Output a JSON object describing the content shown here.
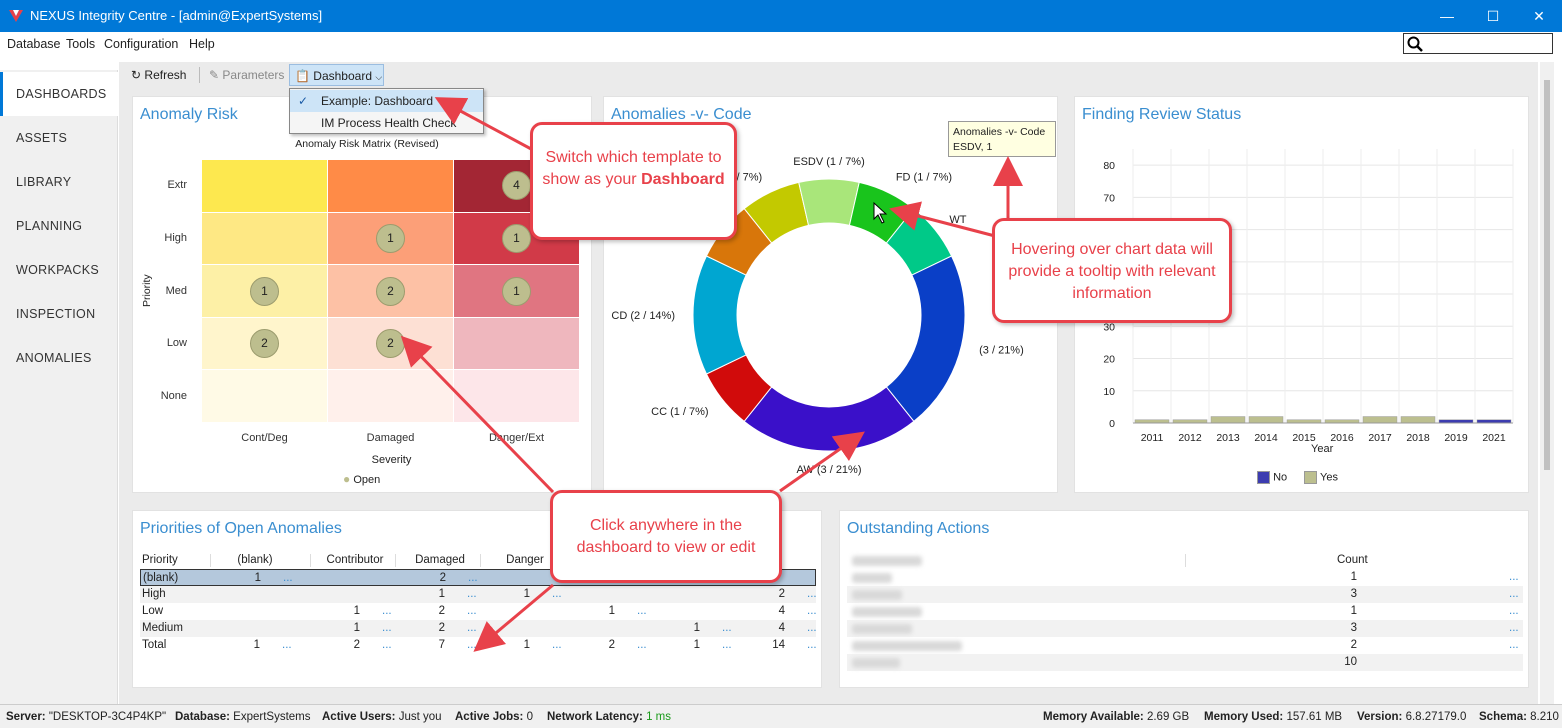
{
  "window": {
    "title": "NEXUS Integrity Centre - [admin@ExpertSystems]",
    "minimize": "—",
    "maximize": "☐",
    "close": "✕"
  },
  "menu": [
    "Database",
    "Tools",
    "Configuration",
    "Help"
  ],
  "search": {
    "placeholder": ""
  },
  "sidebar": {
    "items": [
      {
        "label": "DASHBOARDS",
        "active": true
      },
      {
        "label": "ASSETS"
      },
      {
        "label": "LIBRARY"
      },
      {
        "label": "PLANNING"
      },
      {
        "label": "WORKPACKS"
      },
      {
        "label": "INSPECTION"
      },
      {
        "label": "ANOMALIES"
      }
    ]
  },
  "toolbar": {
    "refresh": "Refresh",
    "parameters": "Parameters",
    "dashboard": "Dashboard"
  },
  "dropdown": {
    "items": [
      {
        "label": "Example: Dashboard",
        "checked": true
      },
      {
        "label": "IM Process Health Check"
      }
    ]
  },
  "risk": {
    "title": "Anomaly Risk",
    "subtitle": "Anomaly Risk Matrix (Revised)",
    "ylabel": "Priority",
    "rows": [
      "Extr",
      "High",
      "Med",
      "Low",
      "None"
    ],
    "cols": [
      "Cont/Deg",
      "Damaged",
      "Danger/Ext"
    ],
    "xlabel": "Severity",
    "legend": "Open",
    "colors": [
      [
        "#fde84f",
        "#ff8b47",
        "#a32634"
      ],
      [
        "#fee884",
        "#fc9f78",
        "#d13a48"
      ],
      [
        "#fdf0a6",
        "#fdc1a5",
        "#e07581"
      ],
      [
        "#fff5cc",
        "#fde0d4",
        "#efb7be"
      ],
      [
        "#fffae6",
        "#fff0eb",
        "#fde6e9"
      ]
    ],
    "bubbles": [
      {
        "row": 0,
        "col": 2,
        "value": "4"
      },
      {
        "row": 1,
        "col": 1,
        "value": "1"
      },
      {
        "row": 1,
        "col": 2,
        "value": "1"
      },
      {
        "row": 2,
        "col": 0,
        "value": "1"
      },
      {
        "row": 2,
        "col": 1,
        "value": "2"
      },
      {
        "row": 2,
        "col": 2,
        "value": "1"
      },
      {
        "row": 3,
        "col": 0,
        "value": "2"
      },
      {
        "row": 3,
        "col": 1,
        "value": "2"
      }
    ]
  },
  "anomalies": {
    "title": "Anomalies -v- Code",
    "tooltip": {
      "line1": "Anomalies -v- Code",
      "line2": "ESDV, 1"
    },
    "chart_data": {
      "type": "pie",
      "slices": [
        {
          "label": "CR (1 / 7%)",
          "value": 1,
          "color": "#c3c900"
        },
        {
          "label": "ESDV (1 / 7%)",
          "value": 1,
          "color": "#a9e67a"
        },
        {
          "label": "FD (1 / 7%)",
          "value": 1,
          "color": "#19c41c"
        },
        {
          "label": "WT",
          "value": 1,
          "color": "#00c988"
        },
        {
          "label": "(3 / 21%)",
          "value": 3,
          "color": "#0a3fc7"
        },
        {
          "label": "AW (3 / 21%)",
          "value": 3,
          "color": "#3a10c9"
        },
        {
          "label": "CC (1 / 7%)",
          "value": 1,
          "color": "#d10b0b"
        },
        {
          "label": "CD (2 / 14%)",
          "value": 2,
          "color": "#00a6d1"
        },
        {
          "label": "7%)",
          "value": 1,
          "color": "#d8760a"
        }
      ]
    }
  },
  "finding": {
    "title": "Finding Review Status",
    "xlabel": "Year",
    "chart_data": {
      "type": "bar",
      "categories": [
        "2011",
        "2012",
        "2013",
        "2014",
        "2015",
        "2016",
        "2017",
        "2018",
        "2019",
        "2021"
      ],
      "yticks": [
        "0",
        "10",
        "20",
        "30",
        "40",
        "50",
        "60",
        "70",
        "80"
      ],
      "ylim": [
        0,
        85
      ],
      "series": [
        {
          "name": "No",
          "color": "#3c3cb0",
          "values": [
            0,
            0,
            0,
            0,
            0,
            0,
            0,
            0,
            1,
            1
          ]
        },
        {
          "name": "Yes",
          "color": "#bcbf8f",
          "values": [
            1,
            1,
            2,
            2,
            1,
            1,
            2,
            2,
            0,
            0
          ]
        }
      ]
    }
  },
  "priorities": {
    "title": "Priorities of Open Anomalies",
    "headers": [
      "Priority",
      "(blank)",
      "Contributor",
      "Damaged",
      "Danger",
      "",
      ""
    ],
    "rows": [
      {
        "label": "(blank)",
        "vals": [
          "1",
          "",
          "2",
          "",
          "",
          "",
          ""
        ],
        "selected": true
      },
      {
        "label": "High",
        "vals": [
          "",
          "",
          "1",
          "1",
          "",
          "",
          "2"
        ]
      },
      {
        "label": "Low",
        "vals": [
          "",
          "1",
          "2",
          "",
          "1",
          "",
          "4"
        ]
      },
      {
        "label": "Medium",
        "vals": [
          "",
          "1",
          "2",
          "",
          "",
          "1",
          "4"
        ]
      },
      {
        "label": "Total",
        "vals": [
          "1",
          "2",
          "7",
          "1",
          "2",
          "1",
          "14"
        ]
      }
    ],
    "dots": "..."
  },
  "actions": {
    "title": "Outstanding Actions",
    "header": "Count",
    "counts": [
      "1",
      "3",
      "1",
      "3",
      "2",
      "10"
    ],
    "dots": "..."
  },
  "callouts": {
    "switch": "Switch which template to show as your",
    "switch_bold": "Dashboard",
    "hover": "Hovering over chart data will provide a tooltip with relevant information",
    "click": "Click anywhere in the dashboard to view or edit"
  },
  "status": {
    "server_label": "Server:",
    "server": "\"DESKTOP-3C4P4KP\"",
    "db_label": "Database:",
    "db": "ExpertSystems",
    "users_label": "Active Users:",
    "users": "Just you",
    "jobs_label": "Active Jobs:",
    "jobs": "0",
    "lat_label": "Network Latency:",
    "lat": "1 ms",
    "mem_label": "Memory Available:",
    "mem": "2.69 GB",
    "used_label": "Memory Used:",
    "used": "157.61 MB",
    "ver_label": "Version:",
    "ver": "6.8.27179.0",
    "schema_label": "Schema:",
    "schema": "8.210"
  }
}
